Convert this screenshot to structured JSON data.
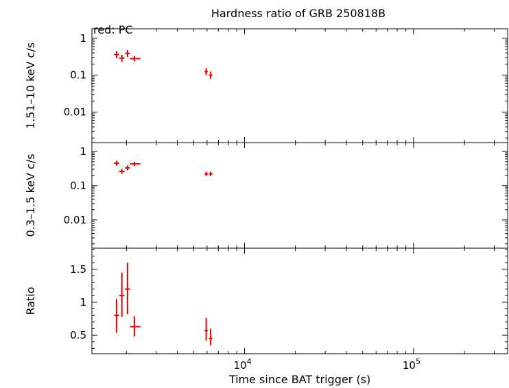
{
  "chart_data": {
    "type": "scatter",
    "title": "Hardness ratio of GRB 250818B",
    "legend_text": "red: PC",
    "xlabel": "Time since BAT trigger (s)",
    "xscale": "log",
    "xlim": [
      1250,
      360000
    ],
    "xticks": [
      {
        "base": "10",
        "exp": "4",
        "value": 10000
      },
      {
        "base": "10",
        "exp": "5",
        "value": 100000
      }
    ],
    "series_color": "#ee0000",
    "panels": [
      {
        "id": "hard",
        "ylabel": "1.51–10 keV c/s",
        "yscale": "log",
        "ylim": [
          0.0015,
          1.8
        ],
        "yticks": [
          {
            "label": "1",
            "value": 1
          },
          {
            "label": "0.1",
            "value": 0.1
          },
          {
            "label": "0.01",
            "value": 0.01
          }
        ],
        "points": [
          {
            "x": 1750,
            "xlo": 1690,
            "xhi": 1810,
            "y": 0.36,
            "ylo": 0.29,
            "yhi": 0.44
          },
          {
            "x": 1880,
            "xlo": 1810,
            "xhi": 1950,
            "y": 0.29,
            "ylo": 0.23,
            "yhi": 0.36
          },
          {
            "x": 2030,
            "xlo": 1960,
            "xhi": 2100,
            "y": 0.39,
            "ylo": 0.31,
            "yhi": 0.48
          },
          {
            "x": 2230,
            "xlo": 2100,
            "xhi": 2420,
            "y": 0.28,
            "ylo": 0.235,
            "yhi": 0.33
          },
          {
            "x": 5930,
            "xlo": 5800,
            "xhi": 6060,
            "y": 0.125,
            "ylo": 0.1,
            "yhi": 0.155
          },
          {
            "x": 6300,
            "xlo": 6150,
            "xhi": 6450,
            "y": 0.1,
            "ylo": 0.08,
            "yhi": 0.125
          }
        ]
      },
      {
        "id": "soft",
        "ylabel": "0.3–1.5 keV c/s",
        "yscale": "log",
        "ylim": [
          0.0015,
          1.8
        ],
        "yticks": [
          {
            "label": "1",
            "value": 1
          },
          {
            "label": "0.1",
            "value": 0.1
          },
          {
            "label": "0.01",
            "value": 0.01
          }
        ],
        "points": [
          {
            "x": 1750,
            "xlo": 1690,
            "xhi": 1810,
            "y": 0.45,
            "ylo": 0.38,
            "yhi": 0.53
          },
          {
            "x": 1880,
            "xlo": 1810,
            "xhi": 1950,
            "y": 0.26,
            "ylo": 0.22,
            "yhi": 0.31
          },
          {
            "x": 2030,
            "xlo": 1960,
            "xhi": 2100,
            "y": 0.33,
            "ylo": 0.28,
            "yhi": 0.39
          },
          {
            "x": 2230,
            "xlo": 2100,
            "xhi": 2420,
            "y": 0.43,
            "ylo": 0.37,
            "yhi": 0.5
          },
          {
            "x": 5930,
            "xlo": 5800,
            "xhi": 6060,
            "y": 0.22,
            "ylo": 0.19,
            "yhi": 0.255
          },
          {
            "x": 6300,
            "xlo": 6150,
            "xhi": 6450,
            "y": 0.22,
            "ylo": 0.19,
            "yhi": 0.255
          }
        ]
      },
      {
        "id": "ratio",
        "ylabel": "Ratio",
        "yscale": "linear",
        "ylim": [
          0.22,
          1.82
        ],
        "yticks": [
          {
            "label": "1.5",
            "value": 1.5
          },
          {
            "label": "1",
            "value": 1
          },
          {
            "label": "0.5",
            "value": 0.5
          }
        ],
        "points": [
          {
            "x": 1750,
            "xlo": 1690,
            "xhi": 1810,
            "y": 0.8,
            "ylo": 0.54,
            "yhi": 1.05
          },
          {
            "x": 1880,
            "xlo": 1810,
            "xhi": 1950,
            "y": 1.1,
            "ylo": 0.78,
            "yhi": 1.45
          },
          {
            "x": 2030,
            "xlo": 1960,
            "xhi": 2100,
            "y": 1.2,
            "ylo": 0.82,
            "yhi": 1.6
          },
          {
            "x": 2230,
            "xlo": 2100,
            "xhi": 2420,
            "y": 0.63,
            "ylo": 0.48,
            "yhi": 0.79
          },
          {
            "x": 5930,
            "xlo": 5800,
            "xhi": 6060,
            "y": 0.57,
            "ylo": 0.42,
            "yhi": 0.76
          },
          {
            "x": 6300,
            "xlo": 6150,
            "xhi": 6450,
            "y": 0.45,
            "ylo": 0.35,
            "yhi": 0.6
          }
        ]
      }
    ]
  }
}
